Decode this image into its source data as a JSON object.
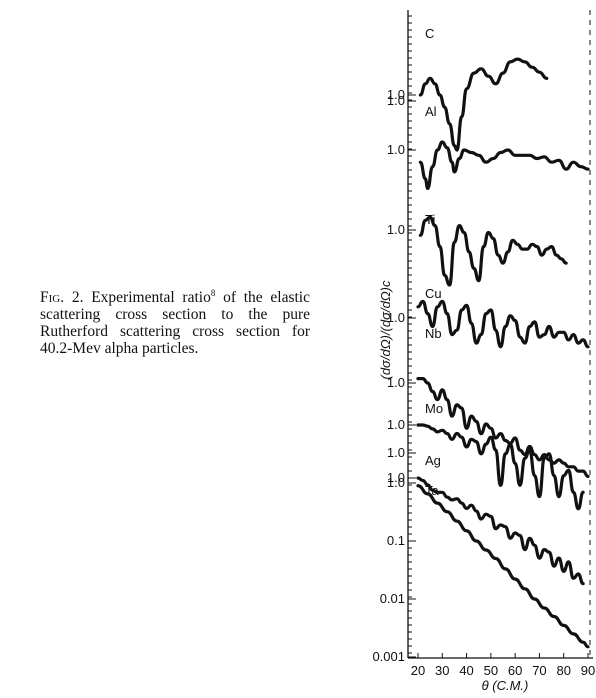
{
  "caption": {
    "fig": "Fig. 2.",
    "pre": "Experimental ratio",
    "ref": "8",
    "post": "of the elastic scattering cross section to the pure Rutherford scattering cross section for 40.2-Mev alpha particles."
  },
  "chart_data": {
    "type": "line",
    "xlabel": "θ (C.M.)",
    "ylabel": "(dσ/dΩ)/(dσ/dΩ)c",
    "x_ticks": [
      "20",
      "30",
      "40",
      "50",
      "60",
      "70",
      "80",
      "90"
    ],
    "xlim": [
      20,
      90
    ],
    "y_scale": "log (curves offset vertically)",
    "bottom_y_ticks": [
      "0.001",
      "0.01",
      "0.1",
      "1.0"
    ],
    "series_labels": [
      "C",
      "Al",
      "Ti",
      "Cu",
      "Nb",
      "Mo",
      "Ag",
      "Ta"
    ],
    "level_labels": [
      "1.0",
      "1.0",
      "1.0",
      "1.0",
      "1.0",
      "1.0",
      "1.0",
      "1.0",
      "1.0"
    ],
    "series": [
      {
        "name": "C",
        "x": [
          21,
          23,
          25,
          27,
          29,
          31,
          33,
          35,
          36,
          38,
          40,
          43,
          46,
          49,
          52,
          55,
          58,
          61,
          64,
          67,
          70,
          73
        ],
        "y": [
          1.0,
          1.6,
          2.0,
          1.6,
          1.0,
          0.6,
          0.3,
          0.12,
          0.1,
          0.4,
          1.3,
          2.5,
          3.0,
          2.2,
          1.6,
          2.5,
          4.0,
          4.5,
          4.0,
          3.2,
          2.6,
          2.0
        ]
      },
      {
        "name": "Al",
        "x": [
          21,
          23,
          24,
          26,
          28,
          30,
          32,
          34,
          35,
          37,
          39,
          42,
          45,
          48,
          51,
          54,
          57,
          60,
          63,
          66,
          69,
          72,
          75,
          78,
          81,
          84,
          87,
          90
        ],
        "y": [
          0.6,
          0.3,
          0.2,
          0.5,
          1.0,
          1.4,
          1.1,
          0.6,
          0.4,
          0.7,
          1.0,
          0.9,
          0.8,
          0.6,
          0.7,
          0.9,
          1.0,
          0.8,
          0.8,
          0.8,
          0.7,
          0.75,
          0.6,
          0.65,
          0.45,
          0.6,
          0.5,
          0.45
        ]
      },
      {
        "name": "Ti",
        "x": [
          21,
          23,
          25,
          27,
          29,
          31,
          33,
          35,
          37,
          39,
          41,
          43,
          45,
          47,
          49,
          51,
          53,
          55,
          57,
          59,
          61,
          63,
          65,
          67,
          69,
          71,
          73,
          75,
          77,
          79,
          81
        ],
        "y": [
          0.8,
          1.5,
          1.7,
          1.2,
          0.5,
          0.15,
          0.1,
          0.6,
          1.2,
          0.9,
          0.4,
          0.2,
          0.12,
          0.5,
          0.9,
          0.7,
          0.35,
          0.25,
          0.4,
          0.65,
          0.55,
          0.45,
          0.45,
          0.55,
          0.5,
          0.35,
          0.45,
          0.5,
          0.35,
          0.3,
          0.25
        ]
      },
      {
        "name": "Cu",
        "x": [
          20,
          22,
          24,
          26,
          28,
          30,
          32,
          34,
          36,
          38,
          40,
          42,
          44,
          46,
          48,
          50,
          52,
          54,
          56,
          58,
          60,
          62,
          64,
          66,
          68,
          70,
          72,
          74,
          76,
          78,
          80,
          82,
          84,
          86,
          88,
          90
        ],
        "y": [
          1.6,
          2.0,
          1.2,
          0.7,
          1.6,
          2.0,
          1.2,
          0.5,
          0.6,
          1.4,
          1.7,
          0.8,
          0.35,
          0.5,
          1.2,
          1.4,
          0.6,
          0.3,
          0.7,
          1.1,
          0.9,
          0.45,
          0.35,
          0.7,
          0.85,
          0.45,
          0.5,
          0.7,
          0.45,
          0.55,
          0.55,
          0.4,
          0.5,
          0.35,
          0.4,
          0.3
        ]
      },
      {
        "name": "Nb",
        "x": [
          20,
          22,
          24,
          26,
          28,
          30,
          32,
          34,
          36,
          38,
          40,
          42,
          44,
          46,
          48,
          50,
          52,
          54,
          56,
          58,
          60,
          62,
          64,
          66,
          68,
          70,
          72,
          74,
          76,
          78,
          80,
          82,
          84,
          86,
          88,
          90
        ],
        "y": [
          1.2,
          1.2,
          1.0,
          0.7,
          0.5,
          0.75,
          0.5,
          0.25,
          0.4,
          0.35,
          0.15,
          0.25,
          0.2,
          0.12,
          0.18,
          0.15,
          0.1,
          0.12,
          0.09,
          0.08,
          0.1,
          0.06,
          0.05,
          0.07,
          0.05,
          0.04,
          0.05,
          0.04,
          0.035,
          0.04,
          0.035,
          0.03,
          0.03,
          0.025,
          0.025,
          0.02
        ]
      },
      {
        "name": "Mo",
        "x": [
          20,
          22,
          24,
          26,
          28,
          30,
          32,
          34,
          36,
          38,
          40,
          42,
          44,
          46,
          48,
          50,
          52,
          54,
          56,
          58,
          60,
          62,
          64,
          66,
          68,
          70,
          72,
          74,
          76,
          78,
          80,
          82,
          84,
          86,
          88
        ],
        "y": [
          1.0,
          1.0,
          0.95,
          0.85,
          0.75,
          0.8,
          0.7,
          0.55,
          0.7,
          0.6,
          0.4,
          0.55,
          0.5,
          0.3,
          0.45,
          0.6,
          0.35,
          0.08,
          0.3,
          0.45,
          0.2,
          0.08,
          0.25,
          0.35,
          0.12,
          0.05,
          0.25,
          0.3,
          0.12,
          0.05,
          0.12,
          0.15,
          0.06,
          0.03,
          0.06
        ]
      },
      {
        "name": "Ag",
        "x": [
          20,
          22,
          24,
          26,
          28,
          30,
          32,
          34,
          36,
          38,
          40,
          42,
          44,
          46,
          48,
          50,
          52,
          54,
          56,
          58,
          60,
          62,
          64,
          66,
          68,
          70,
          72,
          74,
          76,
          78,
          80,
          82,
          84,
          86,
          88
        ],
        "y": [
          1.0,
          0.9,
          0.75,
          0.6,
          0.55,
          0.55,
          0.45,
          0.4,
          0.42,
          0.35,
          0.28,
          0.32,
          0.25,
          0.18,
          0.22,
          0.2,
          0.12,
          0.14,
          0.13,
          0.08,
          0.1,
          0.09,
          0.05,
          0.08,
          0.06,
          0.035,
          0.05,
          0.045,
          0.025,
          0.035,
          0.02,
          0.03,
          0.015,
          0.018,
          0.012
        ]
      },
      {
        "name": "Ta",
        "x": [
          20,
          24,
          28,
          32,
          36,
          40,
          44,
          48,
          52,
          56,
          60,
          64,
          68,
          72,
          76,
          80,
          84,
          88,
          90
        ],
        "y": [
          0.9,
          0.65,
          0.45,
          0.32,
          0.22,
          0.15,
          0.1,
          0.07,
          0.05,
          0.033,
          0.022,
          0.015,
          0.01,
          0.007,
          0.005,
          0.0035,
          0.0025,
          0.0018,
          0.0015
        ]
      }
    ]
  }
}
